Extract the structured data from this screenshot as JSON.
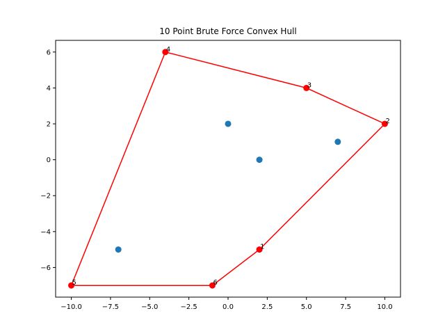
{
  "chart_data": {
    "type": "scatter",
    "title": "10 Point Brute Force Convex Hull",
    "xlabel": "",
    "ylabel": "",
    "xlim": [
      -11,
      11
    ],
    "ylim": [
      -7.65,
      6.65
    ],
    "x_ticks": [
      -10.0,
      -7.5,
      -5.0,
      -2.5,
      0.0,
      2.5,
      5.0,
      7.5,
      10.0
    ],
    "x_tick_labels": [
      "−10.0",
      "−7.5",
      "−5.0",
      "−2.5",
      "0.0",
      "2.5",
      "5.0",
      "7.5",
      "10.0"
    ],
    "y_ticks": [
      -6,
      -4,
      -2,
      0,
      2,
      4,
      6
    ],
    "y_tick_labels": [
      "−6",
      "−4",
      "−2",
      "0",
      "2",
      "4",
      "6"
    ],
    "grid": false,
    "interior_points": {
      "color": "#1f77b4",
      "points": [
        {
          "x": 0,
          "y": 2
        },
        {
          "x": 2,
          "y": 0
        },
        {
          "x": 7,
          "y": 1
        },
        {
          "x": -7,
          "y": -5
        }
      ]
    },
    "hull": {
      "color": "#ff0000",
      "points": [
        {
          "x": 2,
          "y": -5,
          "label": "1"
        },
        {
          "x": 10,
          "y": 2,
          "label": "2"
        },
        {
          "x": 5,
          "y": 4,
          "label": "3"
        },
        {
          "x": -4,
          "y": 6,
          "label": "4"
        },
        {
          "x": -10,
          "y": -7,
          "label": "5"
        },
        {
          "x": -1,
          "y": -7,
          "label": "6"
        }
      ],
      "edges": [
        [
          4,
          3
        ],
        [
          3,
          2
        ],
        [
          2,
          1
        ],
        [
          1,
          0
        ],
        [
          0,
          5
        ],
        [
          5,
          4
        ]
      ]
    }
  }
}
